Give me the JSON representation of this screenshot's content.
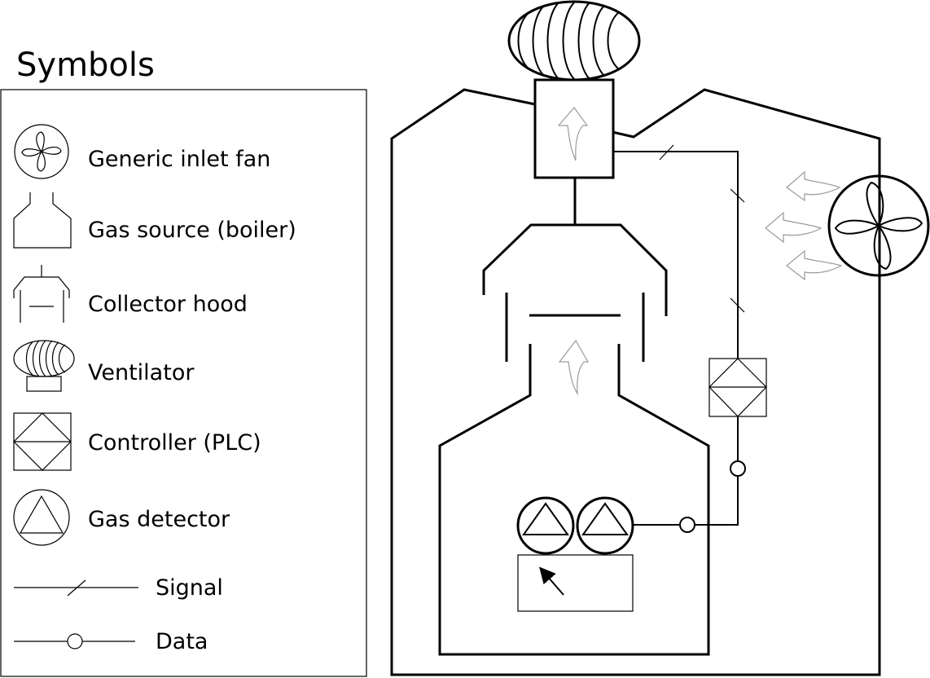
{
  "legend": {
    "title": "Symbols",
    "items": [
      {
        "key": "fan",
        "label": "Generic inlet fan"
      },
      {
        "key": "boiler",
        "label": "Gas source (boiler)"
      },
      {
        "key": "hood",
        "label": "Collector hood"
      },
      {
        "key": "ventilator",
        "label": "Ventilator"
      },
      {
        "key": "plc",
        "label": "Controller (PLC)"
      },
      {
        "key": "detector",
        "label": "Gas detector"
      },
      {
        "key": "signal",
        "label": "Signal"
      },
      {
        "key": "data",
        "label": "Data"
      }
    ]
  },
  "icons": {
    "fan": "fan-icon",
    "boiler": "boiler-icon",
    "hood": "collector-hood-icon",
    "ventilator": "ventilator-icon",
    "plc": "plc-icon",
    "detector": "gas-detector-icon",
    "signal": "signal-line-icon",
    "data": "data-line-icon"
  },
  "colors": {
    "line": "#000000",
    "airflow_arrow": "#9a9a9a",
    "background": "#ffffff"
  }
}
